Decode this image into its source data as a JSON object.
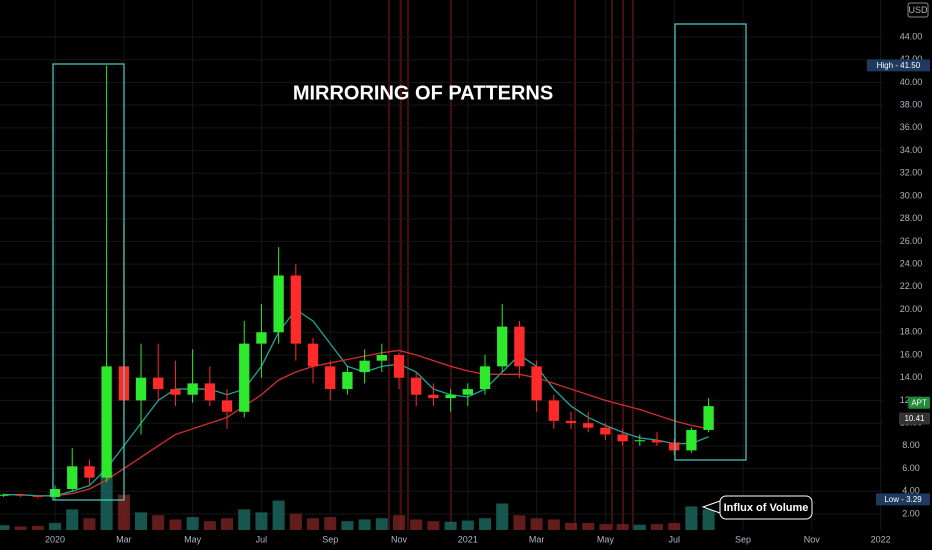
{
  "chart_data": {
    "type": "candlestick",
    "title": "MIRRORING OF PATTERNS",
    "annotation": "Influx of Volume",
    "currency": "USD",
    "x": [
      -1.5,
      -1,
      -0.5,
      0,
      0.5,
      1,
      1.5,
      2,
      2.5,
      3,
      3.5,
      4,
      4.5,
      5,
      5.5,
      6,
      6.5,
      7,
      7.5,
      8,
      8.5,
      9,
      9.5,
      10,
      10.5,
      11,
      11.5,
      12,
      12.5,
      13,
      13.5,
      14,
      14.5,
      15,
      15.5,
      16,
      16.5,
      17,
      17.5,
      18,
      18.5,
      19
    ],
    "open": [
      3.6,
      3.7,
      3.6,
      3.5,
      4.2,
      6.2,
      5.2,
      15,
      12,
      14,
      13,
      12.5,
      13.5,
      12,
      11,
      17,
      18,
      23,
      17,
      15,
      13,
      14.5,
      15.5,
      16,
      14,
      12.5,
      12.2,
      12.5,
      13,
      15,
      18.5,
      15,
      12,
      10.2,
      10,
      9.6,
      9,
      8.4,
      8.5,
      8.3,
      7.6,
      9.4
    ],
    "high": [
      3.8,
      3.8,
      3.7,
      4.5,
      7.8,
      6.8,
      41.5,
      27.5,
      17,
      17,
      15.5,
      16.5,
      15,
      13,
      19,
      20.5,
      25.5,
      24,
      17.5,
      15.5,
      15,
      16.5,
      17,
      16.2,
      14.5,
      13.5,
      13,
      13.5,
      16,
      20.5,
      19,
      15.5,
      12.5,
      11,
      11,
      10,
      9.5,
      9,
      9.2,
      8.6,
      9.6,
      12.2
    ],
    "low": [
      3.5,
      3.5,
      3.4,
      3.3,
      4.0,
      4.6,
      4.8,
      9.5,
      9,
      12,
      11.5,
      11.8,
      11.5,
      9.5,
      10.5,
      14,
      17,
      15.5,
      13.5,
      12,
      12.5,
      13.5,
      14.5,
      13,
      11.5,
      11.5,
      11,
      11.5,
      12.5,
      14.5,
      14,
      11,
      9.5,
      9.5,
      9.2,
      8.5,
      8,
      8,
      8,
      7.2,
      7.4,
      9.2
    ],
    "close": [
      3.7,
      3.6,
      3.5,
      4.2,
      6.2,
      5.2,
      15,
      12,
      14,
      13,
      12.5,
      13.5,
      12,
      11,
      17,
      18,
      23,
      17,
      15,
      13,
      14.5,
      15.5,
      16,
      14,
      12.5,
      12.2,
      12.5,
      13,
      15,
      18.5,
      15,
      12,
      10.2,
      10,
      9.6,
      9,
      8.4,
      8.5,
      8.3,
      7.6,
      9.4,
      11.5
    ],
    "volume": [
      8,
      6,
      7,
      12,
      35,
      20,
      100,
      60,
      30,
      25,
      18,
      22,
      15,
      20,
      35,
      30,
      50,
      28,
      20,
      22,
      15,
      18,
      20,
      25,
      18,
      15,
      14,
      16,
      20,
      45,
      25,
      20,
      18,
      12,
      12,
      10,
      10,
      9,
      10,
      12,
      40,
      35
    ],
    "volume_ylim": [
      0,
      900
    ],
    "up_color": "#2ee82e",
    "down_color": "#ff2b2b",
    "series": [
      {
        "color": "#1fa59a",
        "values": [
          3.7,
          3.7,
          3.6,
          3.6,
          4,
          4.5,
          6,
          8,
          10,
          12,
          13,
          13,
          13,
          12.5,
          13,
          15,
          18,
          20,
          19,
          17,
          15,
          14.5,
          15,
          15.2,
          14.5,
          13,
          12.5,
          12.3,
          13,
          14.5,
          16,
          15,
          13,
          11.5,
          10.5,
          9.8,
          9.2,
          8.7,
          8.5,
          8.2,
          8.2,
          8.8
        ]
      },
      {
        "color": "#d0312d",
        "values": [
          null,
          null,
          null,
          3.6,
          3.8,
          4.2,
          5,
          6,
          7,
          8,
          9,
          9.5,
          10,
          10.5,
          11.5,
          12.5,
          13.8,
          14.5,
          15,
          15.3,
          15.6,
          15.9,
          16.2,
          16.4,
          16,
          15.5,
          15,
          14.6,
          14.3,
          14.3,
          14.3,
          14,
          13.5,
          13,
          12.5,
          12,
          11.6,
          11.2,
          10.7,
          10.2,
          9.8,
          9.5
        ]
      }
    ],
    "xlim": [
      -1.6,
      24.07
    ],
    "ylim": [
      0.59,
      47.26
    ],
    "xticks": [
      {
        "value": 0,
        "label": "2020"
      },
      {
        "value": 2,
        "label": "Mar"
      },
      {
        "value": 4,
        "label": "May"
      },
      {
        "value": 6,
        "label": "Jul"
      },
      {
        "value": 8,
        "label": "Sep"
      },
      {
        "value": 10,
        "label": "Nov"
      },
      {
        "value": 12,
        "label": "2021"
      },
      {
        "value": 14,
        "label": "Mar"
      },
      {
        "value": 16,
        "label": "May"
      },
      {
        "value": 18,
        "label": "Jul"
      },
      {
        "value": 20,
        "label": "Sep"
      },
      {
        "value": 22,
        "label": "Nov"
      },
      {
        "value": 24,
        "label": "2022"
      }
    ],
    "yticks": [
      {
        "value": 2,
        "label": "2.00"
      },
      {
        "value": 4,
        "label": "4.00"
      },
      {
        "value": 6,
        "label": "6.00"
      },
      {
        "value": 8,
        "label": "8.00"
      },
      {
        "value": 10,
        "label": "10.00"
      },
      {
        "value": 12,
        "label": "12.00"
      },
      {
        "value": 14,
        "label": "14.00"
      },
      {
        "value": 16,
        "label": "16.00"
      },
      {
        "value": 18,
        "label": "18.00"
      },
      {
        "value": 20,
        "label": "20.00"
      },
      {
        "value": 22,
        "label": "22.00"
      },
      {
        "value": 24,
        "label": "24.00"
      },
      {
        "value": 26,
        "label": "26.00"
      },
      {
        "value": 28,
        "label": "28.00"
      },
      {
        "value": 30,
        "label": "30.00"
      },
      {
        "value": 32,
        "label": "32.00"
      },
      {
        "value": 34,
        "label": "34.00"
      },
      {
        "value": 36,
        "label": "36.00"
      },
      {
        "value": 38,
        "label": "38.00"
      },
      {
        "value": 40,
        "label": "40.00"
      },
      {
        "value": 42,
        "label": "42.00"
      },
      {
        "value": 44,
        "label": "44.00"
      }
    ],
    "price_labels": [
      {
        "value": 41.5,
        "label": "High - 41.50",
        "color": "#1e3a5f"
      },
      {
        "value": 11.8,
        "label": "APT",
        "color": "#1f8a3a"
      },
      {
        "value": 10.41,
        "label": "10.41",
        "color": "#333333"
      },
      {
        "value": 3.29,
        "label": "Low - 3.29",
        "color": "#1e3a5f"
      }
    ],
    "grid": true
  }
}
